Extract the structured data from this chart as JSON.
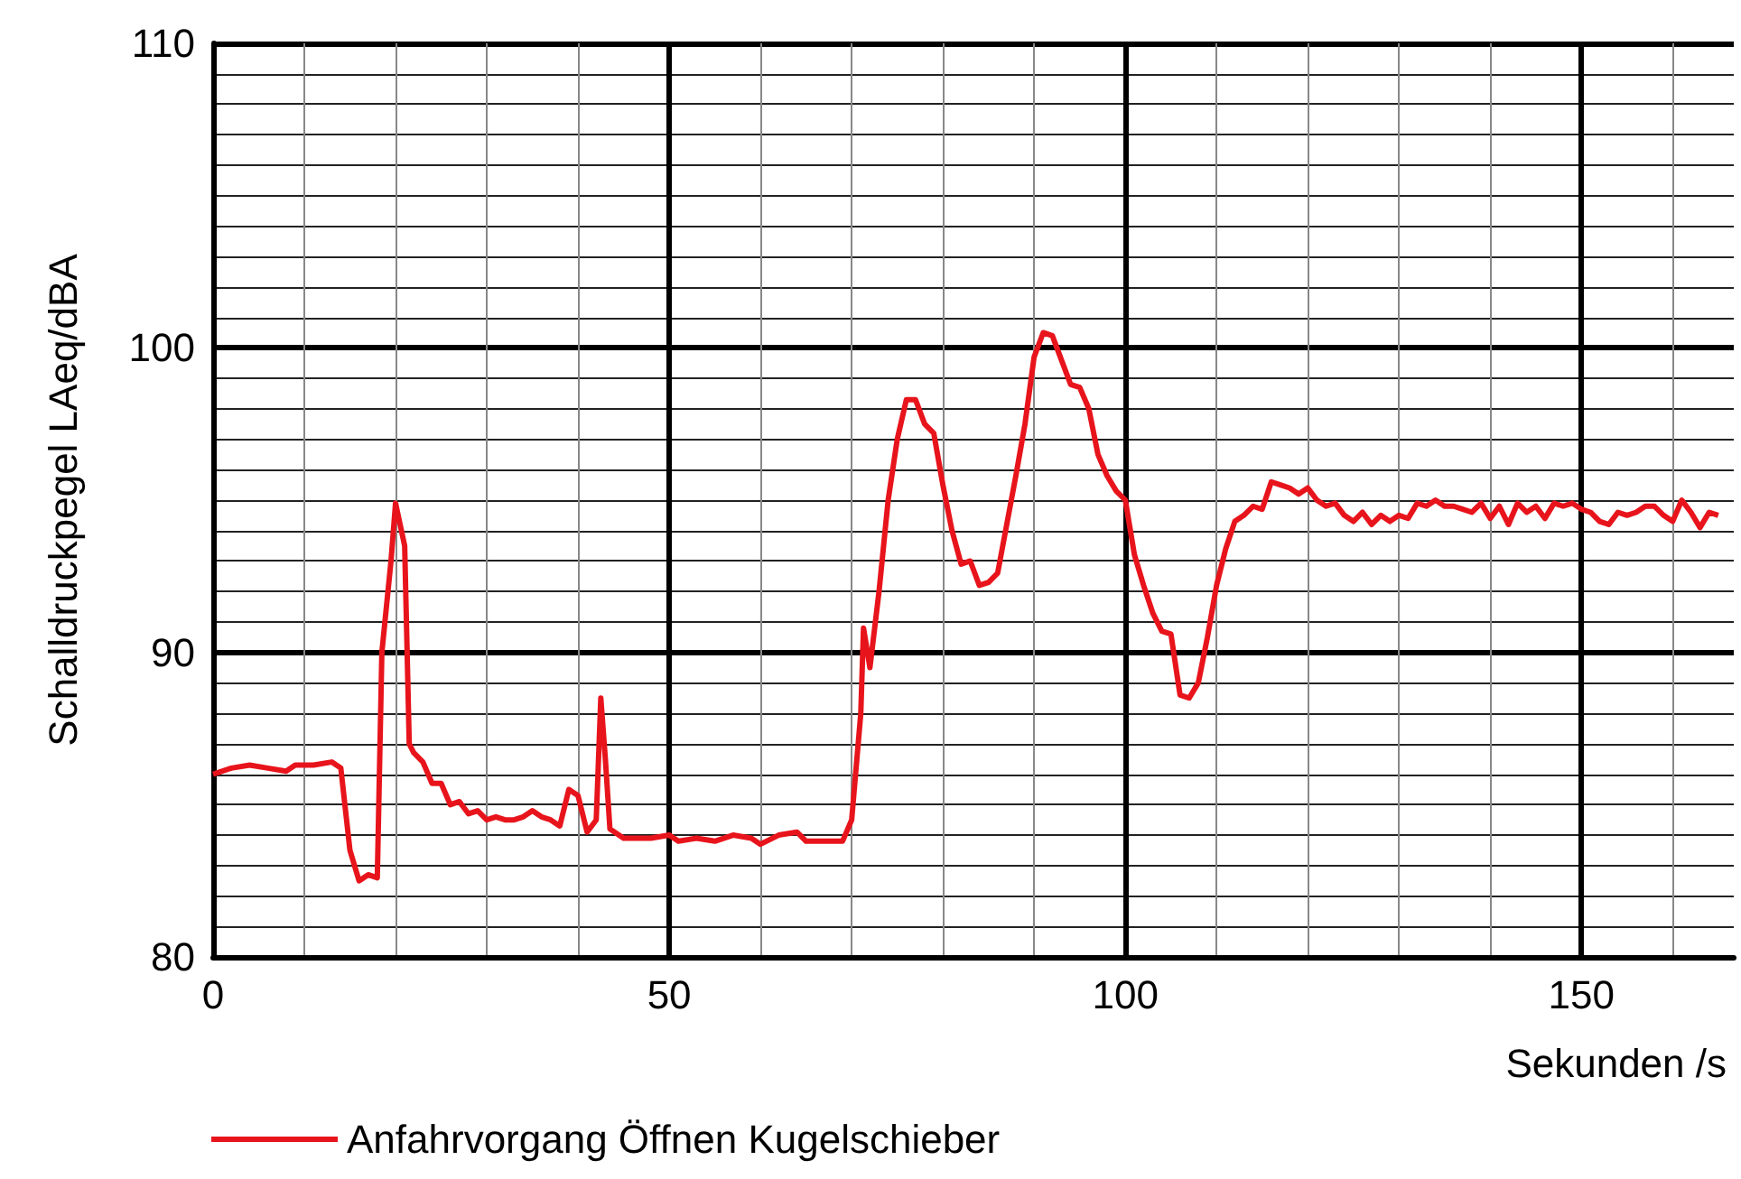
{
  "chart_data": {
    "type": "line",
    "xlabel": "Sekunden /s",
    "ylabel": "Schalldruckpegel LAeq/dBA",
    "xlim": [
      0,
      166.7
    ],
    "ylim": [
      80,
      110
    ],
    "xticks": [
      0,
      50,
      100,
      150
    ],
    "yticks": [
      80,
      90,
      100,
      110
    ],
    "grid": true,
    "legend": "bottom left",
    "marker": "none",
    "line_style": "solid",
    "series": [
      {
        "name": "Anfahrvorgang Öffnen Kugelschieber",
        "color": "#e8141c",
        "x": [
          0,
          2,
          4,
          6,
          8,
          9,
          11,
          13,
          14,
          15,
          16,
          17,
          18,
          18.5,
          19.5,
          20,
          21,
          21.5,
          22,
          23,
          24,
          25,
          26,
          27,
          28,
          29,
          30,
          31,
          32,
          33,
          34,
          35,
          36,
          37,
          38,
          39,
          40,
          41,
          42,
          42.5,
          43,
          43.5,
          45,
          48,
          50,
          51,
          53,
          55,
          57,
          59,
          60,
          62,
          64,
          65,
          67,
          69,
          70,
          71,
          71.3,
          72,
          73,
          74,
          75,
          76,
          77,
          78,
          79,
          80,
          81,
          82,
          83,
          84,
          85,
          86,
          87,
          88,
          89,
          90,
          91,
          92,
          93,
          94,
          95,
          96,
          97,
          98,
          99,
          100,
          101,
          102,
          103,
          104,
          105,
          106,
          107,
          108,
          109,
          110,
          111,
          112,
          113,
          114,
          115,
          116,
          117,
          118,
          119,
          120,
          121,
          122,
          123,
          124,
          125,
          126,
          127,
          128,
          129,
          130,
          131,
          132,
          133,
          134,
          135,
          136,
          137,
          138,
          139,
          140,
          141,
          142,
          143,
          144,
          145,
          146,
          147,
          148,
          149,
          150,
          151,
          152,
          153,
          154,
          155,
          156,
          157,
          158,
          159,
          160,
          161,
          162,
          163,
          164,
          165
        ],
        "values": [
          86.0,
          86.2,
          86.3,
          86.2,
          86.1,
          86.3,
          86.3,
          86.4,
          86.2,
          83.5,
          82.5,
          82.7,
          82.6,
          90,
          93,
          94.9,
          93.5,
          87,
          86.7,
          86.4,
          85.7,
          85.7,
          85,
          85.1,
          84.7,
          84.8,
          84.5,
          84.6,
          84.5,
          84.5,
          84.6,
          84.8,
          84.6,
          84.5,
          84.3,
          85.5,
          85.3,
          84.1,
          84.5,
          88.5,
          86.5,
          84.2,
          83.9,
          83.9,
          84.0,
          83.8,
          83.9,
          83.8,
          84.0,
          83.9,
          83.7,
          84.0,
          84.1,
          83.8,
          83.8,
          83.8,
          84.5,
          88,
          90.8,
          89.5,
          92,
          95,
          97,
          98.3,
          98.3,
          97.5,
          97.2,
          95.5,
          94,
          92.9,
          93,
          92.2,
          92.3,
          92.6,
          94.2,
          95.8,
          97.5,
          99.7,
          100.5,
          100.4,
          99.6,
          98.8,
          98.7,
          98,
          96.5,
          95.8,
          95.3,
          95,
          93.2,
          92.2,
          91.3,
          90.7,
          90.6,
          88.6,
          88.5,
          89,
          90.5,
          92.2,
          93.4,
          94.3,
          94.5,
          94.8,
          94.7,
          95.6,
          95.5,
          95.4,
          95.2,
          95.4,
          95.0,
          94.8,
          94.9,
          94.5,
          94.3,
          94.6,
          94.2,
          94.5,
          94.3,
          94.5,
          94.4,
          94.9,
          94.8,
          95.0,
          94.8,
          94.8,
          94.7,
          94.6,
          94.9,
          94.4,
          94.8,
          94.2,
          94.9,
          94.6,
          94.8,
          94.4,
          94.9,
          94.8,
          94.9,
          94.7,
          94.6,
          94.3,
          94.2,
          94.6,
          94.5,
          94.6,
          94.8,
          94.8,
          94.5,
          94.3,
          95.0,
          94.6,
          94.1,
          94.6,
          94.5
        ]
      }
    ]
  }
}
